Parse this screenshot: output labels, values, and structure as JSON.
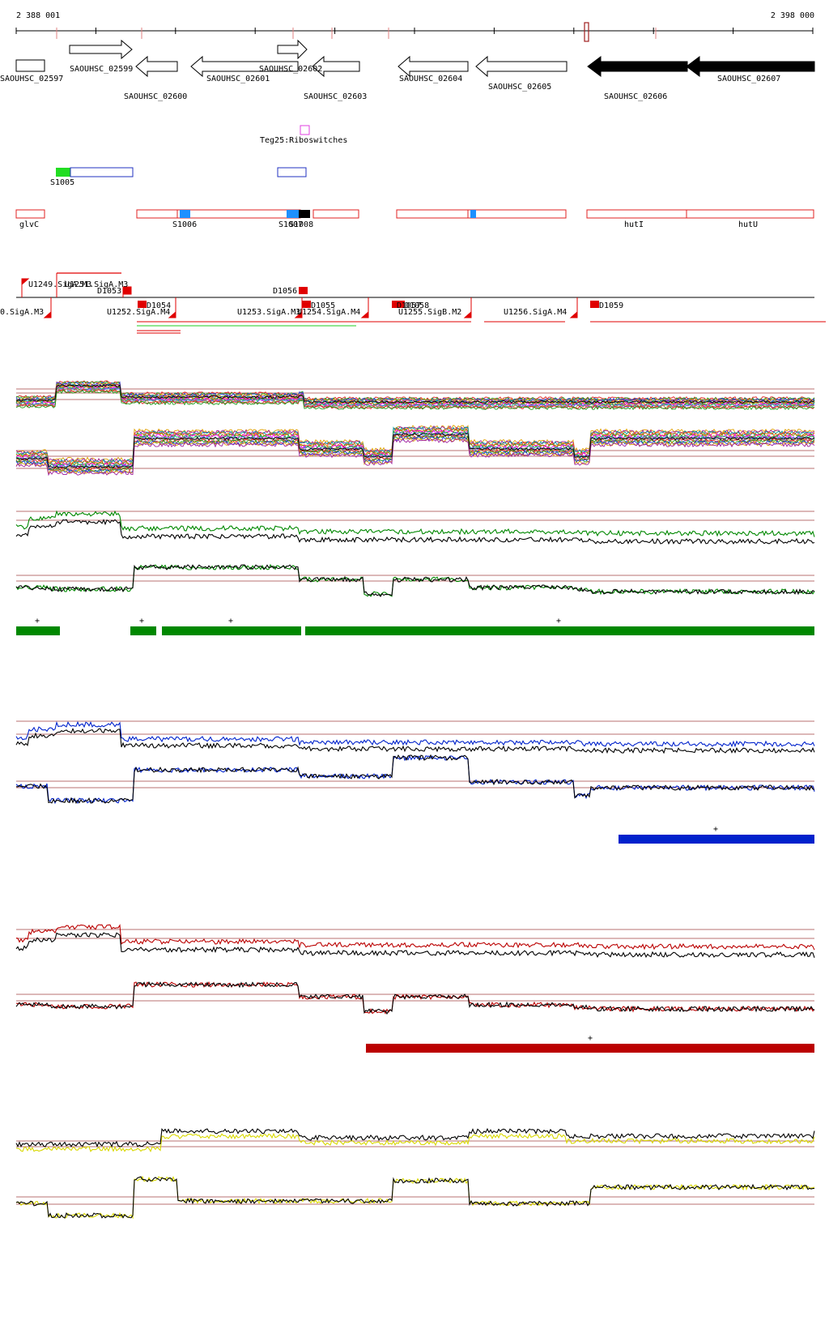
{
  "coords": {
    "start": "2 388 001",
    "end": "2 398 000"
  },
  "genes": [
    {
      "label": "SAOUHSC_02597"
    },
    {
      "label": "SAOUHSC_02599"
    },
    {
      "label": "SAOUHSC_02600"
    },
    {
      "label": "SAOUHSC_02601"
    },
    {
      "label": "SAOUHSC_02602"
    },
    {
      "label": "SAOUHSC_02603"
    },
    {
      "label": "SAOUHSC_02604"
    },
    {
      "label": "SAOUHSC_02605"
    },
    {
      "label": "SAOUHSC_02606"
    },
    {
      "label": "SAOUHSC_02607"
    }
  ],
  "riboswitch": {
    "label": "Teg25:Riboswitches"
  },
  "srna": [
    {
      "label": "S1005"
    }
  ],
  "operons": [
    {
      "label": "glvC"
    },
    {
      "label": "S1006"
    },
    {
      "label": "S1007"
    },
    {
      "label": "S1008"
    },
    {
      "label": "hutI"
    },
    {
      "label": "hutU"
    }
  ],
  "tss": [
    {
      "label": "U1249.SigA.M3"
    },
    {
      "label": "U1251.SigA.M3"
    },
    {
      "label": "D1053"
    },
    {
      "label": "D1056"
    },
    {
      "label": "0.SigA.M3"
    },
    {
      "label": "D1054"
    },
    {
      "label": "U1252.SigA.M4"
    },
    {
      "label": "U1253.SigA.M3"
    },
    {
      "label": "D1055"
    },
    {
      "label": "U1254.SigA.M4"
    },
    {
      "label": "D1057"
    },
    {
      "label": "D1058"
    },
    {
      "label": "U1255.SigB.M2"
    },
    {
      "label": "U1256.SigA.M4"
    },
    {
      "label": "D1059"
    }
  ],
  "plus_sign": "+",
  "colors": {
    "gene_outline": "#000000",
    "gene_filled": "#000000",
    "operon_outline": "#e02020",
    "riboswitch": "#e040e0",
    "srna_green": "#22dd22",
    "srna_blue": "#2030c0",
    "segment_blue": "#1e90ff",
    "tss_red": "#e00000",
    "green_track": "#008800",
    "blue_track": "#0022cc",
    "red_track": "#bb0000",
    "yellow_track": "#d8d800",
    "ref_line": "#a04040"
  }
}
